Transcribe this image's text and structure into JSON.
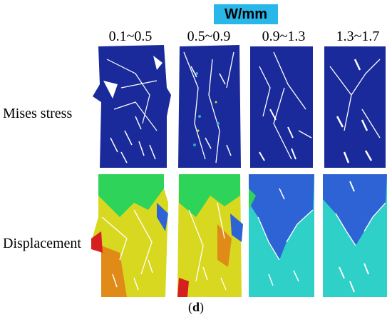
{
  "header": {
    "unit_label": "W/mm"
  },
  "columns": [
    {
      "label": "0.1~0.5"
    },
    {
      "label": "0.5~0.9"
    },
    {
      "label": "0.9~1.3"
    },
    {
      "label": "1.3~1.7"
    }
  ],
  "rows": [
    {
      "label": "Mises stress"
    },
    {
      "label": "Displacement"
    }
  ],
  "caption": {
    "open": "(",
    "letter": "d",
    "close": ")"
  },
  "colors": {
    "stress_bg": "#1a2a9a",
    "stress_dark": "#0d1870",
    "disp_green": "#2ed35a",
    "disp_yellow": "#d8d820",
    "disp_orange": "#e08a18",
    "disp_blue": "#2e63d6",
    "disp_cyan": "#2fd0c8",
    "header_bg": "#29b6e8"
  }
}
